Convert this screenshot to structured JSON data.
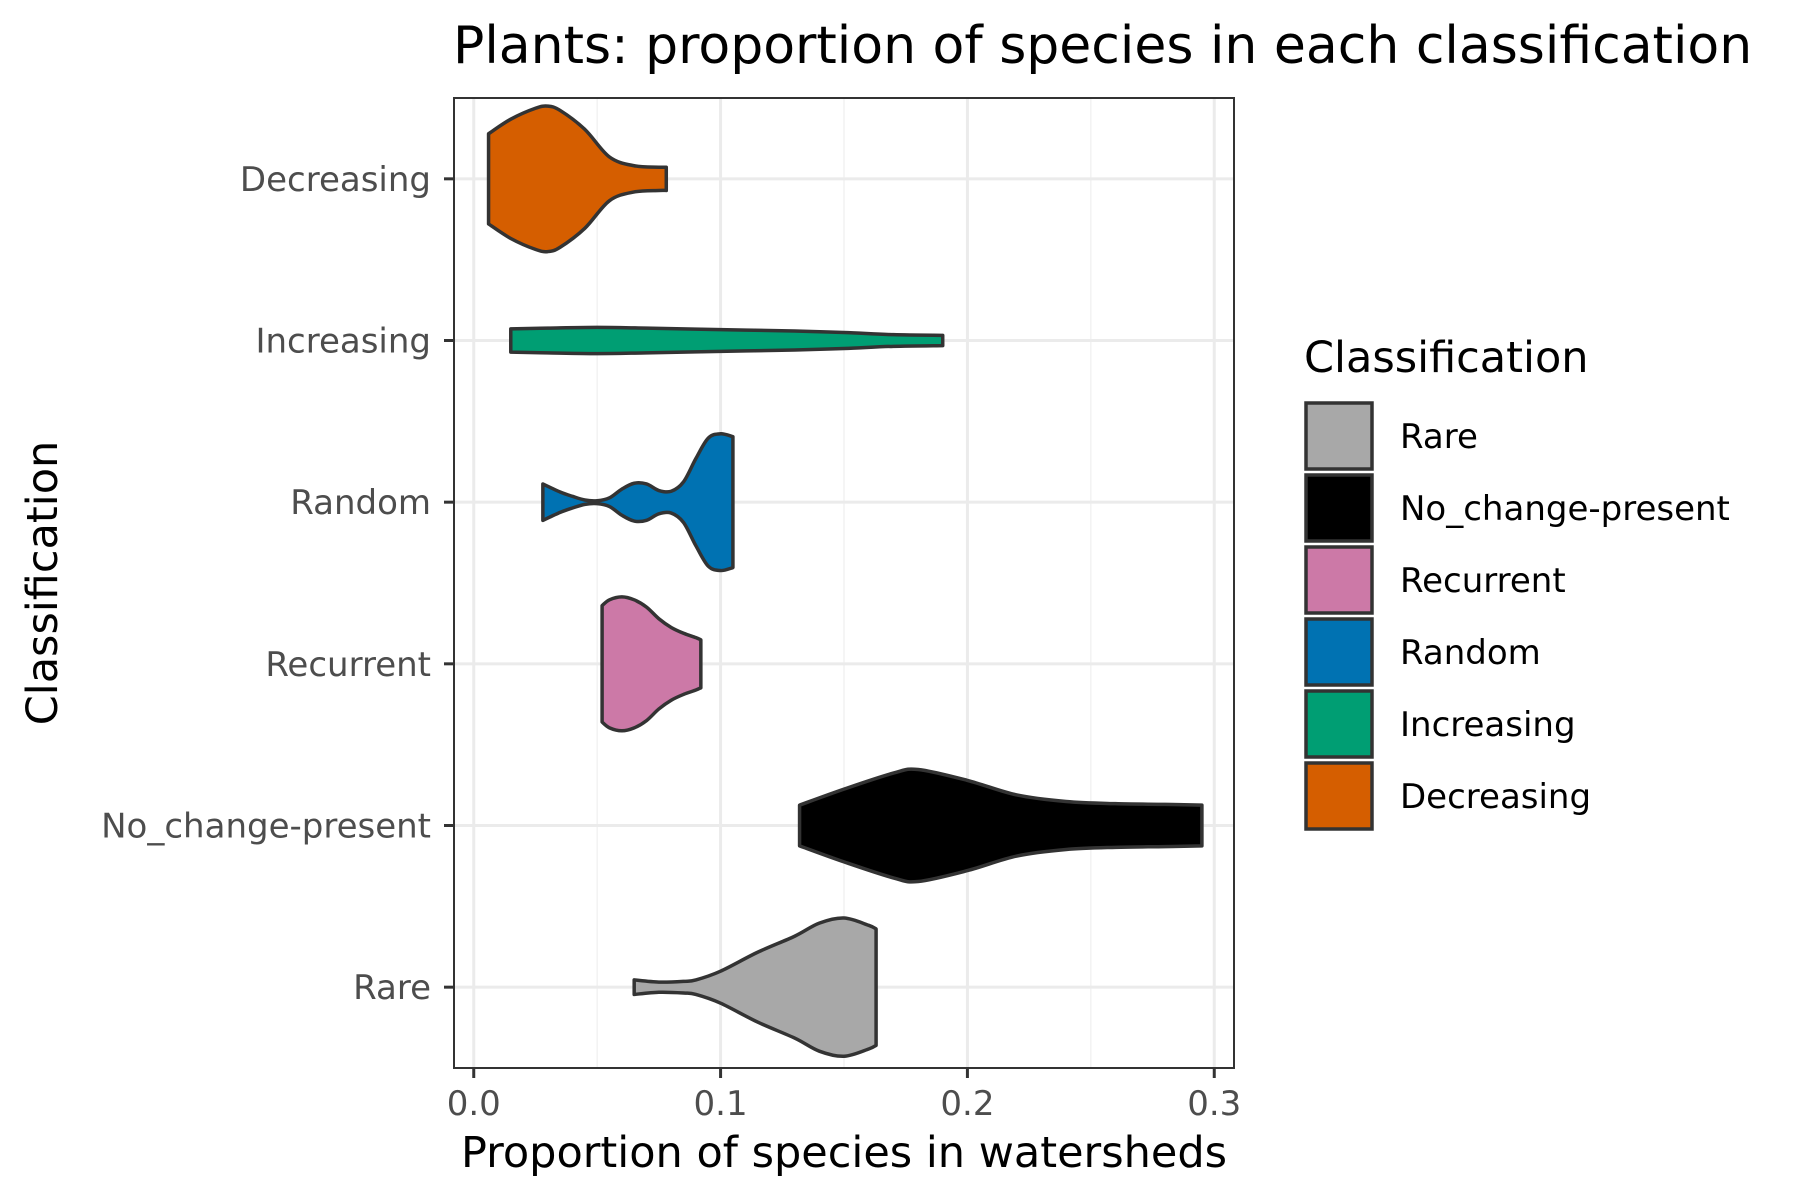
{
  "chart_data": {
    "type": "violin",
    "orientation": "horizontal",
    "title": "Plants: proportion of species in each classification",
    "xlabel": "Proportion of species in watersheds",
    "ylabel": "Classification",
    "xlim": [
      -0.008,
      0.308
    ],
    "xticks": [
      0.0,
      0.1,
      0.2,
      0.3
    ],
    "xtick_labels": [
      "0.0",
      "0.1",
      "0.2",
      "0.3"
    ],
    "grid": true,
    "legend": {
      "title": "Classification",
      "position": "right"
    },
    "categories": [
      "Rare",
      "No_change-present",
      "Recurrent",
      "Random",
      "Increasing",
      "Decreasing"
    ],
    "series": [
      {
        "name": "Rare",
        "color": "#A8A8A8",
        "x": [
          0.065,
          0.075,
          0.085,
          0.09,
          0.1,
          0.115,
          0.13,
          0.14,
          0.15,
          0.16,
          0.163
        ],
        "density": [
          0.1,
          0.07,
          0.08,
          0.1,
          0.22,
          0.48,
          0.7,
          0.88,
          0.95,
          0.85,
          0.8
        ]
      },
      {
        "name": "No_change-present",
        "color": "#000000",
        "x": [
          0.132,
          0.15,
          0.17,
          0.18,
          0.2,
          0.22,
          0.24,
          0.26,
          0.28,
          0.295
        ],
        "density": [
          0.28,
          0.5,
          0.72,
          0.77,
          0.62,
          0.42,
          0.33,
          0.3,
          0.29,
          0.28
        ]
      },
      {
        "name": "Recurrent",
        "color": "#CC79A7",
        "x": [
          0.052,
          0.055,
          0.06,
          0.065,
          0.07,
          0.075,
          0.08,
          0.085,
          0.09,
          0.092
        ],
        "density": [
          0.8,
          0.88,
          0.92,
          0.88,
          0.78,
          0.62,
          0.5,
          0.42,
          0.36,
          0.33
        ]
      },
      {
        "name": "Random",
        "color": "#0072B2",
        "x": [
          0.028,
          0.035,
          0.04,
          0.045,
          0.05,
          0.055,
          0.06,
          0.065,
          0.07,
          0.075,
          0.08,
          0.085,
          0.09,
          0.095,
          0.1,
          0.105
        ],
        "density": [
          0.25,
          0.14,
          0.08,
          0.03,
          0.02,
          0.06,
          0.18,
          0.26,
          0.25,
          0.16,
          0.15,
          0.28,
          0.6,
          0.88,
          0.94,
          0.9
        ]
      },
      {
        "name": "Increasing",
        "color": "#009E73",
        "x": [
          0.015,
          0.03,
          0.05,
          0.07,
          0.1,
          0.13,
          0.15,
          0.17,
          0.19
        ],
        "density": [
          0.16,
          0.17,
          0.18,
          0.17,
          0.15,
          0.13,
          0.11,
          0.08,
          0.07
        ]
      },
      {
        "name": "Decreasing",
        "color": "#D55E00",
        "x": [
          0.006,
          0.015,
          0.025,
          0.03,
          0.035,
          0.045,
          0.055,
          0.065,
          0.075,
          0.078
        ],
        "density": [
          0.62,
          0.82,
          0.97,
          1.0,
          0.94,
          0.68,
          0.3,
          0.18,
          0.16,
          0.16
        ]
      }
    ]
  }
}
